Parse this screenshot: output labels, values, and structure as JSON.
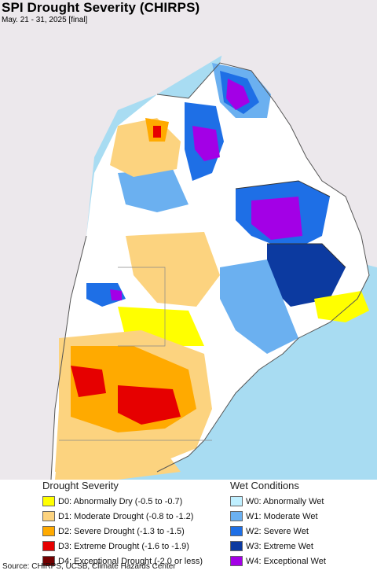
{
  "header": {
    "title": "SPI Drought Severity (CHIRPS)",
    "subtitle": "May. 21 - 31, 2025 [final]"
  },
  "map": {
    "colors": {
      "ocean": "#a8dcf2",
      "land_outside": "#ece8ec",
      "border": "#555555",
      "d0": "#ffff00",
      "d1": "#fcd37f",
      "d2": "#ffaa00",
      "d3": "#e60000",
      "d4": "#730000",
      "w0": "#bfefff",
      "w1": "#6bb0f0",
      "w2": "#1e6fe6",
      "w3": "#0c3aa0",
      "w4": "#a300e6"
    }
  },
  "legend": {
    "drought": {
      "heading": "Drought Severity",
      "items": [
        {
          "label": "D0: Abnormally Dry (-0.5 to -0.7)",
          "color": "#ffff00"
        },
        {
          "label": "D1: Moderate Drought (-0.8 to -1.2)",
          "color": "#fcd37f"
        },
        {
          "label": "D2: Severe Drought (-1.3 to -1.5)",
          "color": "#ffaa00"
        },
        {
          "label": "D3: Extreme Drought (-1.6 to -1.9)",
          "color": "#e60000"
        },
        {
          "label": "D4: Exceptional Drought (-2.0 or less)",
          "color": "#730000"
        }
      ]
    },
    "wet": {
      "heading": "Wet Conditions",
      "items": [
        {
          "label": "W0: Abnormally Wet",
          "color": "#bfefff"
        },
        {
          "label": "W1: Moderate Wet",
          "color": "#6bb0f0"
        },
        {
          "label": "W2: Severe Wet",
          "color": "#1e6fe6"
        },
        {
          "label": "W3: Extreme Wet",
          "color": "#0c3aa0"
        },
        {
          "label": "W4: Exceptional Wet",
          "color": "#a300e6"
        }
      ]
    }
  },
  "footer": {
    "source": "Source: CHIRPS, UCSB, Climate Hazards Center"
  }
}
